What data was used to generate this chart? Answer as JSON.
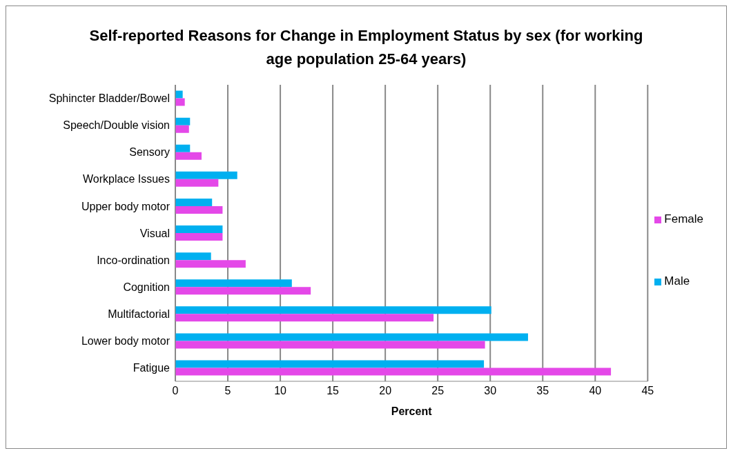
{
  "chart_data": {
    "type": "bar",
    "orientation": "horizontal",
    "title": "Self-reported Reasons for Change in Employment Status by sex (for working age population 25-64 years)",
    "xlabel": "Percent",
    "categories": [
      "Sphincter Bladder/Bowel",
      "Speech/Double vision",
      "Sensory",
      "Workplace Issues",
      "Upper body motor",
      "Visual",
      "Inco-ordination",
      "Cognition",
      "Multifactorial",
      "Lower body motor",
      "Fatigue"
    ],
    "series": [
      {
        "name": "Male",
        "color": "#00b0f0",
        "values": [
          0.7,
          1.4,
          1.4,
          5.9,
          3.5,
          4.5,
          3.4,
          11.1,
          30.1,
          33.6,
          29.4
        ]
      },
      {
        "name": "Female",
        "color": "#e448e8",
        "values": [
          0.9,
          1.3,
          2.5,
          4.1,
          4.5,
          4.5,
          6.7,
          12.9,
          24.6,
          29.5,
          41.5
        ]
      }
    ],
    "xlim": [
      0,
      45
    ],
    "xticks": [
      0,
      5,
      10,
      15,
      20,
      25,
      30,
      35,
      40,
      45
    ],
    "grid": "x",
    "legend": "right"
  }
}
